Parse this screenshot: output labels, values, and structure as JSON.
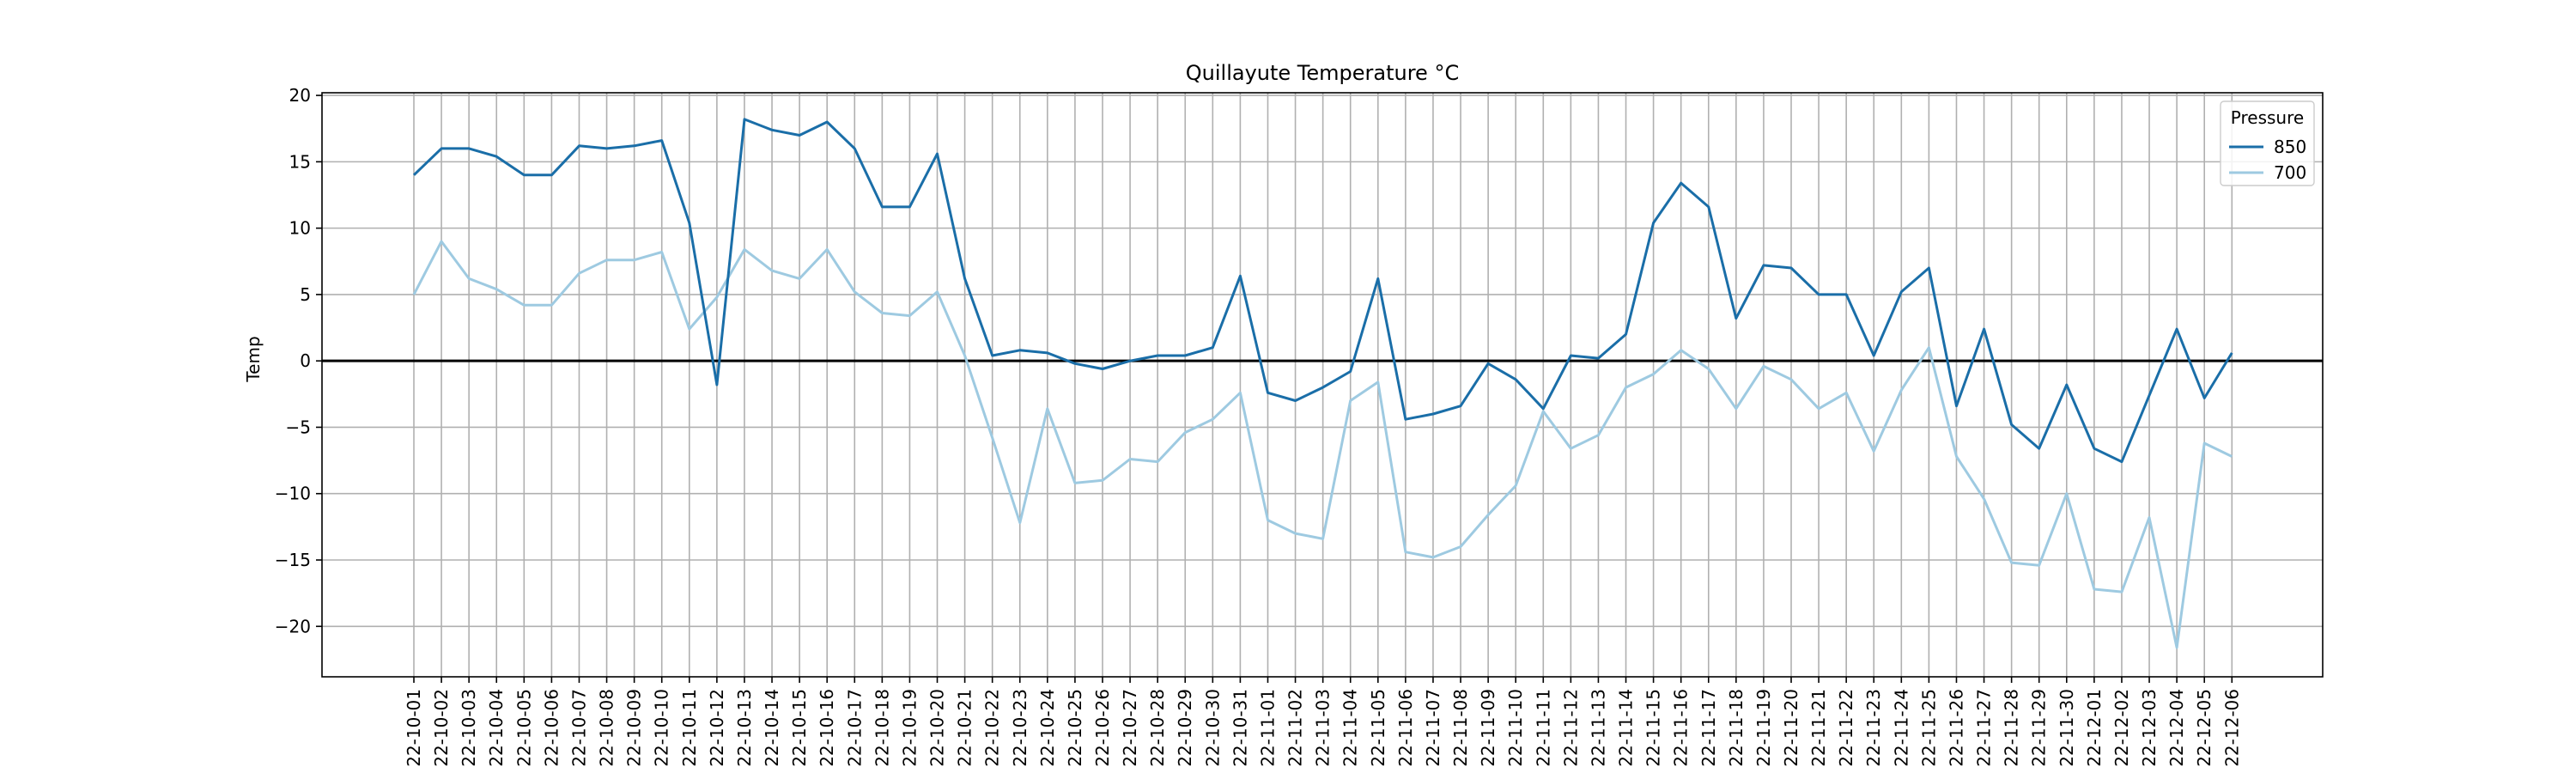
{
  "chart_data": {
    "type": "line",
    "title": "Quillayute Temperature °C",
    "xlabel": "",
    "ylabel": "Temp",
    "ylim": [
      -23.8,
      20.2
    ],
    "yticks": [
      -20,
      -15,
      -10,
      -5,
      0,
      5,
      10,
      15,
      20
    ],
    "grid": true,
    "zero_line": true,
    "legend": {
      "title": "Pressure",
      "placement": "top-right"
    },
    "x": [
      "22-10-01",
      "22-10-02",
      "22-10-03",
      "22-10-04",
      "22-10-05",
      "22-10-06",
      "22-10-07",
      "22-10-08",
      "22-10-09",
      "22-10-10",
      "22-10-11",
      "22-10-12",
      "22-10-13",
      "22-10-14",
      "22-10-15",
      "22-10-16",
      "22-10-17",
      "22-10-18",
      "22-10-19",
      "22-10-20",
      "22-10-21",
      "22-10-22",
      "22-10-23",
      "22-10-24",
      "22-10-25",
      "22-10-26",
      "22-10-27",
      "22-10-28",
      "22-10-29",
      "22-10-30",
      "22-10-31",
      "22-11-01",
      "22-11-02",
      "22-11-03",
      "22-11-04",
      "22-11-05",
      "22-11-06",
      "22-11-07",
      "22-11-08",
      "22-11-09",
      "22-11-10",
      "22-11-11",
      "22-11-12",
      "22-11-13",
      "22-11-14",
      "22-11-15",
      "22-11-16",
      "22-11-17",
      "22-11-18",
      "22-11-19",
      "22-11-20",
      "22-11-21",
      "22-11-22",
      "22-11-23",
      "22-11-24",
      "22-11-25",
      "22-11-26",
      "22-11-27",
      "22-11-28",
      "22-11-29",
      "22-11-30",
      "22-12-01",
      "22-12-02",
      "22-12-03",
      "22-12-04",
      "22-12-05",
      "22-12-06"
    ],
    "series": [
      {
        "name": "850",
        "color": "#1a6ea8",
        "values": [
          14.0,
          16.0,
          16.0,
          15.4,
          14.0,
          14.0,
          16.2,
          16.0,
          16.2,
          16.6,
          10.4,
          -1.8,
          18.2,
          17.4,
          17.0,
          18.0,
          16.0,
          11.6,
          11.6,
          15.6,
          6.2,
          0.4,
          0.8,
          0.6,
          -0.2,
          -0.6,
          0.0,
          0.4,
          0.4,
          1.0,
          6.4,
          -2.4,
          -3.0,
          -2.0,
          -0.8,
          6.2,
          -4.4,
          -4.0,
          -3.4,
          -0.2,
          -1.4,
          -3.6,
          0.4,
          0.2,
          2.0,
          10.4,
          13.4,
          11.6,
          3.2,
          7.2,
          7.0,
          5.0,
          5.0,
          0.4,
          5.2,
          7.0,
          -3.4,
          2.4,
          -4.8,
          -6.6,
          -1.8,
          -6.6,
          -7.6,
          -2.6,
          2.4,
          -2.8,
          0.6
        ]
      },
      {
        "name": "700",
        "color": "#9ecae1",
        "values": [
          5.0,
          9.0,
          6.2,
          5.4,
          4.2,
          4.2,
          6.6,
          7.6,
          7.6,
          8.2,
          2.4,
          4.8,
          8.4,
          6.8,
          6.2,
          8.4,
          5.2,
          3.6,
          3.4,
          5.2,
          0.4,
          -5.8,
          -12.2,
          -3.6,
          -9.2,
          -9.0,
          -7.4,
          -7.6,
          -5.4,
          -4.4,
          -2.4,
          -12.0,
          -13.0,
          -13.4,
          -3.0,
          -1.6,
          -14.4,
          -14.8,
          -14.0,
          -11.6,
          -9.4,
          -3.8,
          -6.6,
          -5.6,
          -2.0,
          -1.0,
          0.8,
          -0.6,
          -3.6,
          -0.4,
          -1.4,
          -3.6,
          -2.4,
          -6.8,
          -2.2,
          1.0,
          -7.2,
          -10.4,
          -15.2,
          -15.4,
          -10.0,
          -17.2,
          -17.4,
          -11.8,
          -21.6,
          -6.2,
          -7.2
        ]
      }
    ]
  }
}
